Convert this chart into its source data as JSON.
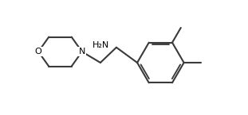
{
  "bg_color": "#ffffff",
  "line_color": "#3a3a3a",
  "line_width": 1.5,
  "text_color": "#000000",
  "label_O": "O",
  "label_N": "N",
  "label_NH2": "H₂N"
}
